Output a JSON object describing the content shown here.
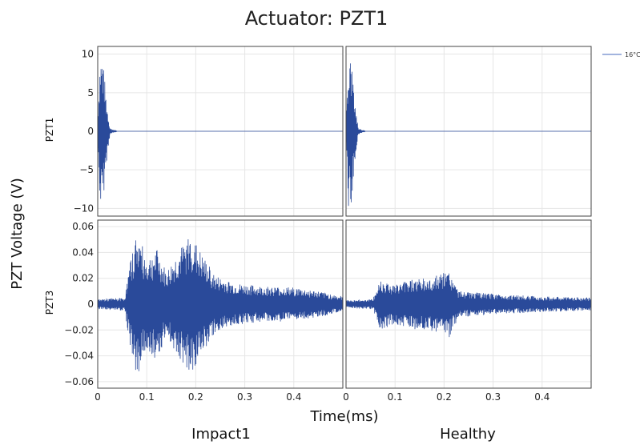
{
  "title": "Actuator: PZT1",
  "ylabel": "PZT Voltage (V)",
  "xlabel": "Time(ms)",
  "columns": [
    "Impact1",
    "Healthy"
  ],
  "rows": [
    "PZT1",
    "PZT3"
  ],
  "legend": [
    {
      "label": "16°C",
      "color": "#6b86c9"
    }
  ],
  "colors": {
    "signal": "#2a4a9a",
    "grid": "#e6e6e6",
    "frame": "#444444"
  },
  "chart_data": [
    {
      "type": "line",
      "row": "PZT1",
      "column": "Impact1",
      "xlim": [
        0,
        0.5
      ],
      "ylim": [
        -11,
        11
      ],
      "xticks": [
        0,
        0.1,
        0.2,
        0.3,
        0.4
      ],
      "yticks": [
        10,
        5,
        0,
        -5,
        -10
      ],
      "xtick_labels": [
        "0",
        "0.1",
        "0.2",
        "0.3",
        "0.4"
      ],
      "ytick_labels": [
        "10",
        "5",
        "0",
        "−5",
        "−10"
      ],
      "series": [
        {
          "name": "16°C",
          "envelope": [
            [
              0,
              2
            ],
            [
              0.005,
              10
            ],
            [
              0.01,
              9.8
            ],
            [
              0.018,
              4
            ],
            [
              0.025,
              0.4
            ],
            [
              0.04,
              0
            ],
            [
              0.5,
              0
            ]
          ]
        }
      ]
    },
    {
      "type": "line",
      "row": "PZT1",
      "column": "Healthy",
      "xlim": [
        0,
        0.5
      ],
      "ylim": [
        -11,
        11
      ],
      "xticks": [
        0,
        0.1,
        0.2,
        0.3,
        0.4
      ],
      "yticks": [
        10,
        5,
        0,
        -5,
        -10
      ],
      "xtick_labels": [
        "0",
        "0.1",
        "0.2",
        "0.3",
        "0.4"
      ],
      "ytick_labels": [],
      "series": [
        {
          "name": "16°C",
          "envelope": [
            [
              0,
              2
            ],
            [
              0.005,
              10
            ],
            [
              0.01,
              9.8
            ],
            [
              0.018,
              4
            ],
            [
              0.025,
              0.4
            ],
            [
              0.04,
              0
            ],
            [
              0.5,
              0
            ]
          ]
        }
      ]
    },
    {
      "type": "line",
      "row": "PZT3",
      "column": "Impact1",
      "xlim": [
        0,
        0.5
      ],
      "ylim": [
        -0.065,
        0.065
      ],
      "xticks": [
        0,
        0.1,
        0.2,
        0.3,
        0.4
      ],
      "yticks": [
        0.06,
        0.04,
        0.02,
        0,
        -0.02,
        -0.04,
        -0.06
      ],
      "xtick_labels": [
        "0",
        "0.1",
        "0.2",
        "0.3",
        "0.4"
      ],
      "ytick_labels": [
        "0.06",
        "0.04",
        "0.02",
        "0",
        "−0.02",
        "−0.04",
        "−0.06"
      ],
      "series": [
        {
          "name": "16°C",
          "envelope": [
            [
              0,
              0.004
            ],
            [
              0.055,
              0.005
            ],
            [
              0.065,
              0.03
            ],
            [
              0.08,
              0.057
            ],
            [
              0.1,
              0.035
            ],
            [
              0.12,
              0.043
            ],
            [
              0.14,
              0.025
            ],
            [
              0.16,
              0.038
            ],
            [
              0.19,
              0.055
            ],
            [
              0.21,
              0.04
            ],
            [
              0.24,
              0.022
            ],
            [
              0.28,
              0.016
            ],
            [
              0.33,
              0.014
            ],
            [
              0.4,
              0.013
            ],
            [
              0.45,
              0.01
            ],
            [
              0.5,
              0.006
            ]
          ]
        }
      ]
    },
    {
      "type": "line",
      "row": "PZT3",
      "column": "Healthy",
      "xlim": [
        0,
        0.5
      ],
      "ylim": [
        -0.065,
        0.065
      ],
      "xticks": [
        0,
        0.1,
        0.2,
        0.3,
        0.4
      ],
      "yticks": [
        0.06,
        0.04,
        0.02,
        0,
        -0.02,
        -0.04,
        -0.06
      ],
      "xtick_labels": [
        "0",
        "0.1",
        "0.2",
        "0.3",
        "0.4"
      ],
      "ytick_labels": [],
      "series": [
        {
          "name": "16°C",
          "envelope": [
            [
              0,
              0.003
            ],
            [
              0.055,
              0.004
            ],
            [
              0.07,
              0.02
            ],
            [
              0.1,
              0.015
            ],
            [
              0.13,
              0.02
            ],
            [
              0.17,
              0.02
            ],
            [
              0.21,
              0.026
            ],
            [
              0.23,
              0.01
            ],
            [
              0.3,
              0.008
            ],
            [
              0.4,
              0.006
            ],
            [
              0.5,
              0.005
            ]
          ]
        }
      ]
    }
  ]
}
